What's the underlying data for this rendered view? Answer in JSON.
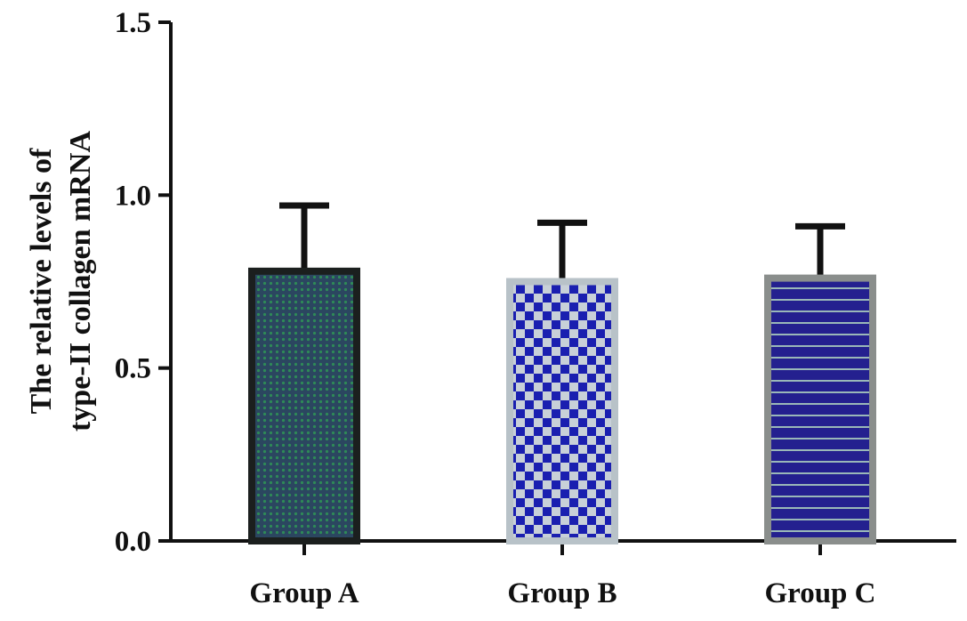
{
  "chart_data": {
    "type": "bar",
    "categories": [
      "Group A",
      "Group B",
      "Group C"
    ],
    "values": [
      0.78,
      0.75,
      0.76
    ],
    "errors": [
      0.19,
      0.17,
      0.15
    ],
    "ylabel_lines": [
      "The relative levels of",
      "type-II collagen mRNA"
    ],
    "xlabel": "",
    "ylim": [
      0,
      1.5
    ],
    "yticks": [
      0.0,
      0.5,
      1.0,
      1.5
    ],
    "ytick_labels": [
      "0.0",
      "0.5",
      "1.0",
      "1.5"
    ],
    "grid": false,
    "bar_styles": [
      {
        "pattern": "dots",
        "border": "#1b1f1e",
        "fill": "#2f4a6a",
        "dot": "#2e8b57"
      },
      {
        "pattern": "checker",
        "border": "#b8c2c8",
        "fill": "#1a1fb0",
        "alt": "#c8d0d8"
      },
      {
        "pattern": "hstripes",
        "border": "#8a8e8c",
        "fill": "#24208f",
        "stripe": "#9ab8b8"
      }
    ]
  }
}
